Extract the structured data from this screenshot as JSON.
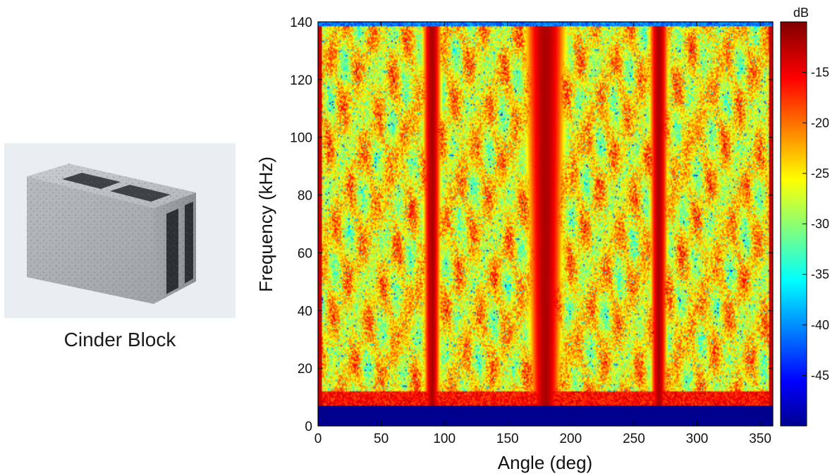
{
  "photo": {
    "caption": "Cinder Block",
    "image_icon": "cinder-block-photo"
  },
  "chart_data": {
    "type": "heatmap",
    "title": "",
    "xlabel": "Angle (deg)",
    "ylabel": "Frequency (kHz)",
    "xlim": [
      0,
      360
    ],
    "ylim": [
      0,
      140
    ],
    "xticks": [
      0,
      50,
      100,
      150,
      200,
      250,
      300,
      350
    ],
    "yticks": [
      0,
      20,
      40,
      60,
      80,
      100,
      120,
      140
    ],
    "colorbar": {
      "label": "dB",
      "range": [
        -50,
        -10
      ],
      "ticks": [
        -15,
        -20,
        -25,
        -30,
        -35,
        -40,
        -45
      ],
      "colormap": "jet"
    },
    "features": {
      "low_frequency_cutoff_khz": 7,
      "specular_angles_deg": [
        90,
        180,
        270
      ],
      "background_level_db": -25,
      "peak_level_db": -12
    }
  }
}
